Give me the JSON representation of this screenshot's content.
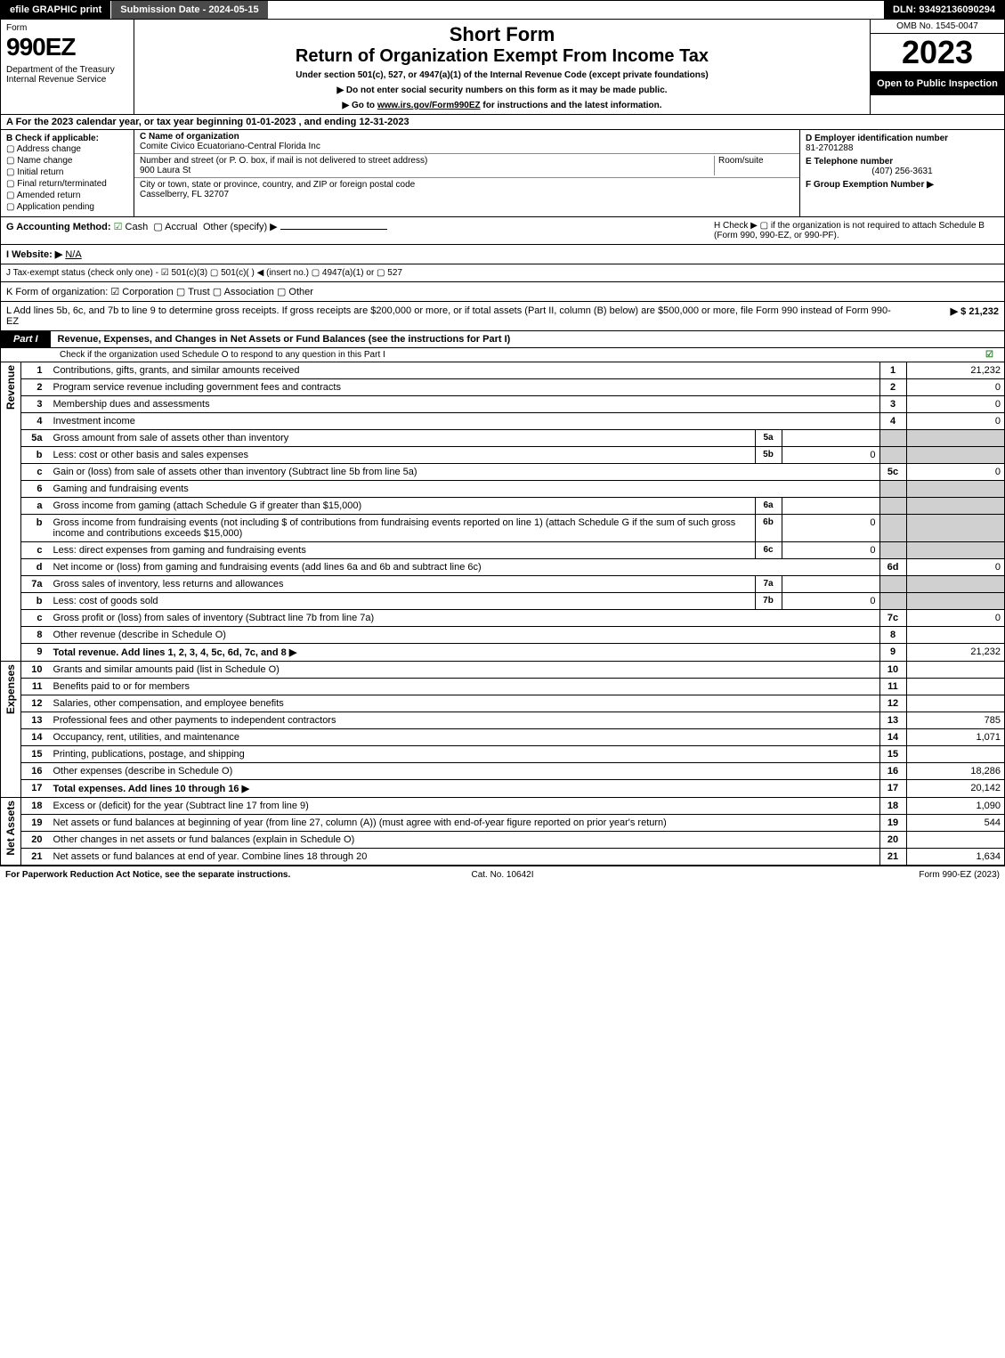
{
  "topbar": {
    "efile": "efile GRAPHIC print",
    "subdate": "Submission Date - 2024-05-15",
    "dln": "DLN: 93492136090294"
  },
  "header": {
    "form": "Form",
    "formnum": "990EZ",
    "dept": "Department of the Treasury\nInternal Revenue Service",
    "short": "Short Form",
    "rtn": "Return of Organization Exempt From Income Tax",
    "under": "Under section 501(c), 527, or 4947(a)(1) of the Internal Revenue Code (except private foundations)",
    "note1": "▶ Do not enter social security numbers on this form as it may be made public.",
    "note2_pre": "▶ Go to ",
    "note2_link": "www.irs.gov/Form990EZ",
    "note2_post": " for instructions and the latest information.",
    "omb": "OMB No. 1545-0047",
    "year": "2023",
    "open": "Open to Public Inspection"
  },
  "lineA": "A  For the 2023 calendar year, or tax year beginning 01-01-2023 , and ending 12-31-2023",
  "B": {
    "label": "B  Check if applicable:",
    "opts": [
      "Address change",
      "Name change",
      "Initial return",
      "Final return/terminated",
      "Amended return",
      "Application pending"
    ]
  },
  "C": {
    "name_lbl": "C Name of organization",
    "name": "Comite Civico Ecuatoriano-Central Florida Inc",
    "addr_lbl": "Number and street (or P. O. box, if mail is not delivered to street address)",
    "addr": "900 Laura St",
    "room_lbl": "Room/suite",
    "city_lbl": "City or town, state or province, country, and ZIP or foreign postal code",
    "city": "Casselberry, FL  32707"
  },
  "D": {
    "lbl": "D Employer identification number",
    "val": "81-2701288"
  },
  "E": {
    "lbl": "E Telephone number",
    "val": "(407) 256-3631"
  },
  "F": {
    "lbl": "F Group Exemption Number  ▶"
  },
  "G": {
    "lbl": "G Accounting Method:",
    "cash": "Cash",
    "accr": "Accrual",
    "other": "Other (specify) ▶"
  },
  "H": {
    "txt": "H  Check ▶  ▢  if the organization is not required to attach Schedule B (Form 990, 990-EZ, or 990-PF)."
  },
  "I": {
    "lbl": "I Website: ▶",
    "val": "N/A"
  },
  "J": {
    "txt": "J Tax-exempt status (check only one) - ☑ 501(c)(3)  ▢ 501(c)(  ) ◀ (insert no.)  ▢ 4947(a)(1) or  ▢ 527"
  },
  "K": {
    "txt": "K Form of organization:  ☑ Corporation  ▢ Trust  ▢ Association  ▢ Other"
  },
  "L": {
    "txt": "L Add lines 5b, 6c, and 7b to line 9 to determine gross receipts. If gross receipts are $200,000 or more, or if total assets (Part II, column (B) below) are $500,000 or more, file Form 990 instead of Form 990-EZ",
    "amt": "▶ $ 21,232"
  },
  "part1": {
    "tag": "Part I",
    "title": "Revenue, Expenses, and Changes in Net Assets or Fund Balances (see the instructions for Part I)",
    "check": "Check if the organization used Schedule O to respond to any question in this Part I",
    "checked": "☑"
  },
  "sidelabels": {
    "rev": "Revenue",
    "exp": "Expenses",
    "na": "Net Assets"
  },
  "rows": [
    {
      "n": "1",
      "d": "Contributions, gifts, grants, and similar amounts received",
      "c3": "1",
      "c4": "21,232"
    },
    {
      "n": "2",
      "d": "Program service revenue including government fees and contracts",
      "c3": "2",
      "c4": "0"
    },
    {
      "n": "3",
      "d": "Membership dues and assessments",
      "c3": "3",
      "c4": "0"
    },
    {
      "n": "4",
      "d": "Investment income",
      "c3": "4",
      "c4": "0"
    },
    {
      "n": "5a",
      "d": "Gross amount from sale of assets other than inventory",
      "s1": "5a",
      "s2": "",
      "c3g": true
    },
    {
      "n": "b",
      "d": "Less: cost or other basis and sales expenses",
      "s1": "5b",
      "s2": "0",
      "c3g": true
    },
    {
      "n": "c",
      "d": "Gain or (loss) from sale of assets other than inventory (Subtract line 5b from line 5a)",
      "c3": "5c",
      "c4": "0"
    },
    {
      "n": "6",
      "d": "Gaming and fundraising events",
      "c3g": true
    },
    {
      "n": "a",
      "d": "Gross income from gaming (attach Schedule G if greater than $15,000)",
      "s1": "6a",
      "s2": "",
      "c3g": true
    },
    {
      "n": "b",
      "d": "Gross income from fundraising events (not including $                  of contributions from fundraising events reported on line 1) (attach Schedule G if the sum of such gross income and contributions exceeds $15,000)",
      "s1": "6b",
      "s2": "0",
      "c3g": true
    },
    {
      "n": "c",
      "d": "Less: direct expenses from gaming and fundraising events",
      "s1": "6c",
      "s2": "0",
      "c3g": true
    },
    {
      "n": "d",
      "d": "Net income or (loss) from gaming and fundraising events (add lines 6a and 6b and subtract line 6c)",
      "c3": "6d",
      "c4": "0"
    },
    {
      "n": "7a",
      "d": "Gross sales of inventory, less returns and allowances",
      "s1": "7a",
      "s2": "",
      "c3g": true
    },
    {
      "n": "b",
      "d": "Less: cost of goods sold",
      "s1": "7b",
      "s2": "0",
      "c3g": true
    },
    {
      "n": "c",
      "d": "Gross profit or (loss) from sales of inventory (Subtract line 7b from line 7a)",
      "c3": "7c",
      "c4": "0"
    },
    {
      "n": "8",
      "d": "Other revenue (describe in Schedule O)",
      "c3": "8",
      "c4": ""
    },
    {
      "n": "9",
      "d": "Total revenue. Add lines 1, 2, 3, 4, 5c, 6d, 7c, and 8",
      "bold": true,
      "arr": true,
      "c3": "9",
      "c4": "21,232"
    }
  ],
  "exprows": [
    {
      "n": "10",
      "d": "Grants and similar amounts paid (list in Schedule O)",
      "c3": "10",
      "c4": ""
    },
    {
      "n": "11",
      "d": "Benefits paid to or for members",
      "c3": "11",
      "c4": ""
    },
    {
      "n": "12",
      "d": "Salaries, other compensation, and employee benefits",
      "c3": "12",
      "c4": ""
    },
    {
      "n": "13",
      "d": "Professional fees and other payments to independent contractors",
      "c3": "13",
      "c4": "785"
    },
    {
      "n": "14",
      "d": "Occupancy, rent, utilities, and maintenance",
      "c3": "14",
      "c4": "1,071"
    },
    {
      "n": "15",
      "d": "Printing, publications, postage, and shipping",
      "c3": "15",
      "c4": ""
    },
    {
      "n": "16",
      "d": "Other expenses (describe in Schedule O)",
      "c3": "16",
      "c4": "18,286"
    },
    {
      "n": "17",
      "d": "Total expenses. Add lines 10 through 16",
      "bold": true,
      "arr": true,
      "c3": "17",
      "c4": "20,142"
    }
  ],
  "narows": [
    {
      "n": "18",
      "d": "Excess or (deficit) for the year (Subtract line 17 from line 9)",
      "c3": "18",
      "c4": "1,090"
    },
    {
      "n": "19",
      "d": "Net assets or fund balances at beginning of year (from line 27, column (A)) (must agree with end-of-year figure reported on prior year's return)",
      "c3": "19",
      "c4": "544"
    },
    {
      "n": "20",
      "d": "Other changes in net assets or fund balances (explain in Schedule O)",
      "c3": "20",
      "c4": ""
    },
    {
      "n": "21",
      "d": "Net assets or fund balances at end of year. Combine lines 18 through 20",
      "c3": "21",
      "c4": "1,634"
    }
  ],
  "footer": {
    "l": "For Paperwork Reduction Act Notice, see the separate instructions.",
    "c": "Cat. No. 10642I",
    "r": "Form 990-EZ (2023)"
  }
}
